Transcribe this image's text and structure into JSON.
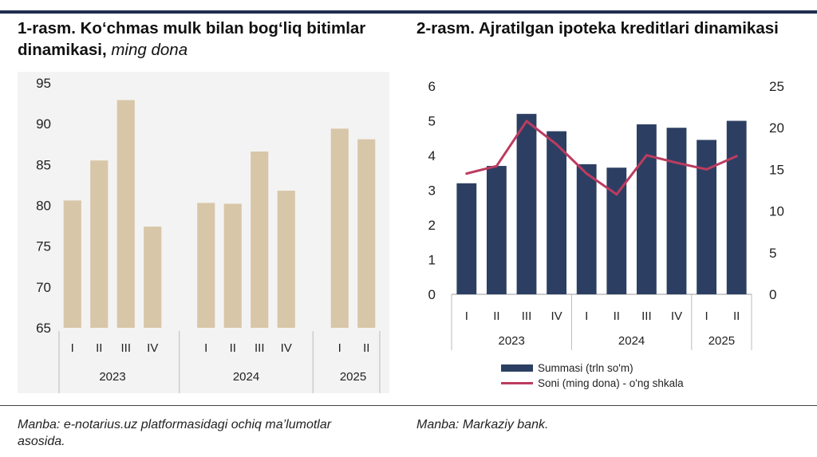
{
  "header": {
    "rule_color": "#1f2d4e"
  },
  "chart1": {
    "title_main": "1-rasm. Ko‘chmas mulk bilan bog‘liq bitimlar dinamikasi, ",
    "title_unit": "ming dona",
    "source": "Manba: e-notarius.uz platformasidagi ochiq ma’lumotlar asosida."
  },
  "chart2": {
    "title": "2-rasm. Ajratilgan ipoteka kreditlari dinamikasi",
    "source": "Manba: Markaziy bank.",
    "legend": {
      "bars": "Summasi (trln so'm)",
      "line": "Soni (ming dona) - o'ng shkala"
    }
  },
  "chart_data": [
    {
      "type": "bar",
      "title": "1-rasm. Ko‘chmas mulk bilan bog‘liq bitimlar dinamikasi, ming dona",
      "groups": [
        {
          "label": "2023",
          "categories": [
            "I",
            "II",
            "III",
            "IV"
          ]
        },
        {
          "label": "2024",
          "categories": [
            "I",
            "II",
            "III",
            "IV"
          ]
        },
        {
          "label": "2025",
          "categories": [
            "I",
            "II"
          ]
        }
      ],
      "values": [
        80.6,
        85.5,
        92.9,
        77.4,
        80.3,
        80.2,
        86.6,
        81.8,
        89.4,
        88.1
      ],
      "ylim": [
        65,
        95
      ],
      "yticks": [
        65,
        70,
        75,
        80,
        85,
        90,
        95
      ],
      "colors": {
        "bar": "#d8c6a8",
        "background": "#f3f3f3"
      },
      "grid": false
    },
    {
      "type": "bar",
      "title": "2-rasm. Ajratilgan ipoteka kreditlari dinamikasi",
      "groups": [
        {
          "label": "2023",
          "categories": [
            "I",
            "II",
            "III",
            "IV"
          ]
        },
        {
          "label": "2024",
          "categories": [
            "I",
            "II",
            "III",
            "IV"
          ]
        },
        {
          "label": "2025",
          "categories": [
            "I",
            "II"
          ]
        }
      ],
      "series": [
        {
          "name": "Summasi (trln so'm)",
          "type": "bar",
          "axis": "left",
          "values": [
            3.2,
            3.7,
            5.2,
            4.7,
            3.75,
            3.65,
            4.9,
            4.8,
            4.45,
            5.0
          ]
        },
        {
          "name": "Soni (ming dona) - o'ng shkala",
          "type": "line",
          "axis": "right",
          "values": [
            14.5,
            15.4,
            20.8,
            18.0,
            14.5,
            12.0,
            16.7,
            15.8,
            15.0,
            16.6
          ]
        }
      ],
      "ylim_left": [
        0,
        6
      ],
      "yticks_left": [
        0,
        1,
        2,
        3,
        4,
        5,
        6
      ],
      "ylim_right": [
        0,
        25
      ],
      "yticks_right": [
        0,
        5,
        10,
        15,
        20,
        25
      ],
      "legend_position": "bottom",
      "colors": {
        "bar": "#2c3f63",
        "line": "#bc3c5f"
      },
      "grid": false
    }
  ]
}
